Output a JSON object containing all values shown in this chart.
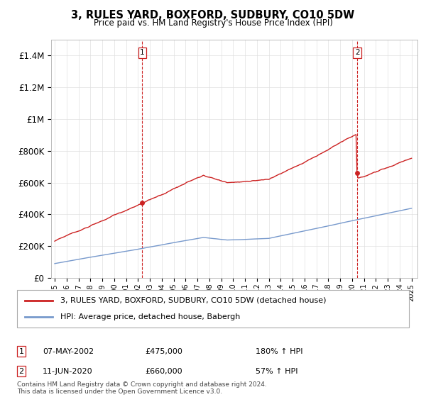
{
  "title": "3, RULES YARD, BOXFORD, SUDBURY, CO10 5DW",
  "subtitle": "Price paid vs. HM Land Registry's House Price Index (HPI)",
  "legend_line1": "3, RULES YARD, BOXFORD, SUDBURY, CO10 5DW (detached house)",
  "legend_line2": "HPI: Average price, detached house, Babergh",
  "hpi_color": "#7799cc",
  "price_color": "#cc2222",
  "dashed_color": "#cc2222",
  "sale1_date": "07-MAY-2002",
  "sale1_price": "£475,000",
  "sale1_hpi": "180% ↑ HPI",
  "sale2_date": "11-JUN-2020",
  "sale2_price": "£660,000",
  "sale2_hpi": "57% ↑ HPI",
  "footer": "Contains HM Land Registry data © Crown copyright and database right 2024.\nThis data is licensed under the Open Government Licence v3.0.",
  "ylim": [
    0,
    1500000
  ],
  "yticks": [
    0,
    200000,
    400000,
    600000,
    800000,
    1000000,
    1200000,
    1400000
  ],
  "ytick_labels": [
    "£0",
    "£200K",
    "£400K",
    "£600K",
    "£800K",
    "£1M",
    "£1.2M",
    "£1.4M"
  ],
  "sale1_year": 2002.37,
  "sale2_year": 2020.45,
  "sale1_price_val": 475000,
  "sale2_price_val": 660000
}
